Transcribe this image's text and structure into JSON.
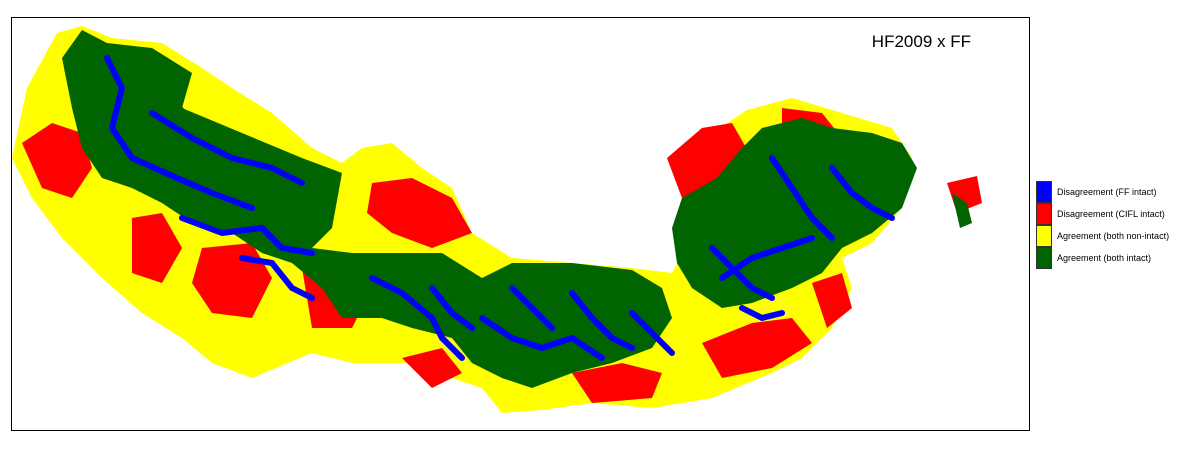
{
  "title": "HF2009 x FF",
  "legend": [
    {
      "label": "Disagreement (FF intact)",
      "color": "#0000FF"
    },
    {
      "label": "Disagreement (CIFL intact)",
      "color": "#FF0000"
    },
    {
      "label": "Agreement (both non-intact)",
      "color": "#FFFF00"
    },
    {
      "label": "Agreement (both intact)",
      "color": "#006400"
    }
  ]
}
